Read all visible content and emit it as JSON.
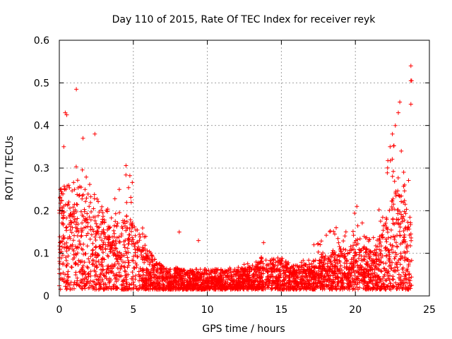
{
  "chart_data": {
    "type": "scatter",
    "title": "Day 110 of 2015, Rate Of TEC Index for receiver reyk",
    "xlabel": "GPS time / hours",
    "ylabel": "ROTI / TECUs",
    "xlim": [
      0,
      25
    ],
    "ylim": [
      0,
      0.6
    ],
    "x_ticks": [
      "0",
      "5",
      "10",
      "15",
      "20",
      "25"
    ],
    "y_ticks": [
      "0",
      "0.1",
      "0.2",
      "0.3",
      "0.4",
      "0.5",
      "0.6"
    ],
    "grid": true,
    "marker": "plus",
    "color": "#ff0000",
    "envelope": {
      "hours": [
        0,
        0.5,
        1,
        1.5,
        2,
        2.5,
        3,
        3.5,
        4,
        4.5,
        5,
        5.5,
        6,
        6.5,
        7,
        7.5,
        8,
        8.5,
        9,
        9.5,
        10,
        11,
        12,
        13,
        14,
        15,
        16,
        17,
        18,
        19,
        20,
        21,
        21.5,
        22,
        22.5,
        23,
        23.5,
        23.8
      ],
      "typical_roti": [
        0.15,
        0.16,
        0.16,
        0.15,
        0.13,
        0.12,
        0.11,
        0.09,
        0.08,
        0.11,
        0.1,
        0.08,
        0.06,
        0.045,
        0.035,
        0.03,
        0.03,
        0.03,
        0.03,
        0.03,
        0.03,
        0.03,
        0.03,
        0.035,
        0.045,
        0.045,
        0.035,
        0.04,
        0.05,
        0.06,
        0.07,
        0.06,
        0.07,
        0.1,
        0.14,
        0.15,
        0.12,
        0.1
      ],
      "max_roti": [
        0.32,
        0.3,
        0.32,
        0.3,
        0.28,
        0.25,
        0.22,
        0.2,
        0.26,
        0.32,
        0.28,
        0.2,
        0.12,
        0.09,
        0.07,
        0.06,
        0.07,
        0.06,
        0.07,
        0.06,
        0.06,
        0.07,
        0.07,
        0.08,
        0.1,
        0.09,
        0.07,
        0.1,
        0.15,
        0.16,
        0.2,
        0.14,
        0.18,
        0.3,
        0.38,
        0.35,
        0.3,
        0.29
      ]
    },
    "outliers": [
      {
        "x": 0.4,
        "y": 0.43
      },
      {
        "x": 0.5,
        "y": 0.425
      },
      {
        "x": 0.3,
        "y": 0.35
      },
      {
        "x": 1.15,
        "y": 0.485
      },
      {
        "x": 2.4,
        "y": 0.38
      },
      {
        "x": 1.6,
        "y": 0.37
      },
      {
        "x": 8.1,
        "y": 0.15
      },
      {
        "x": 9.4,
        "y": 0.13
      },
      {
        "x": 13.8,
        "y": 0.125
      },
      {
        "x": 17.2,
        "y": 0.12
      },
      {
        "x": 18.7,
        "y": 0.16
      },
      {
        "x": 20.1,
        "y": 0.21
      },
      {
        "x": 22.7,
        "y": 0.4
      },
      {
        "x": 22.9,
        "y": 0.43
      },
      {
        "x": 23.0,
        "y": 0.455
      },
      {
        "x": 23.75,
        "y": 0.54
      },
      {
        "x": 23.75,
        "y": 0.505
      },
      {
        "x": 23.8,
        "y": 0.505
      },
      {
        "x": 23.75,
        "y": 0.45
      },
      {
        "x": 22.5,
        "y": 0.38
      },
      {
        "x": 23.1,
        "y": 0.34
      }
    ]
  }
}
